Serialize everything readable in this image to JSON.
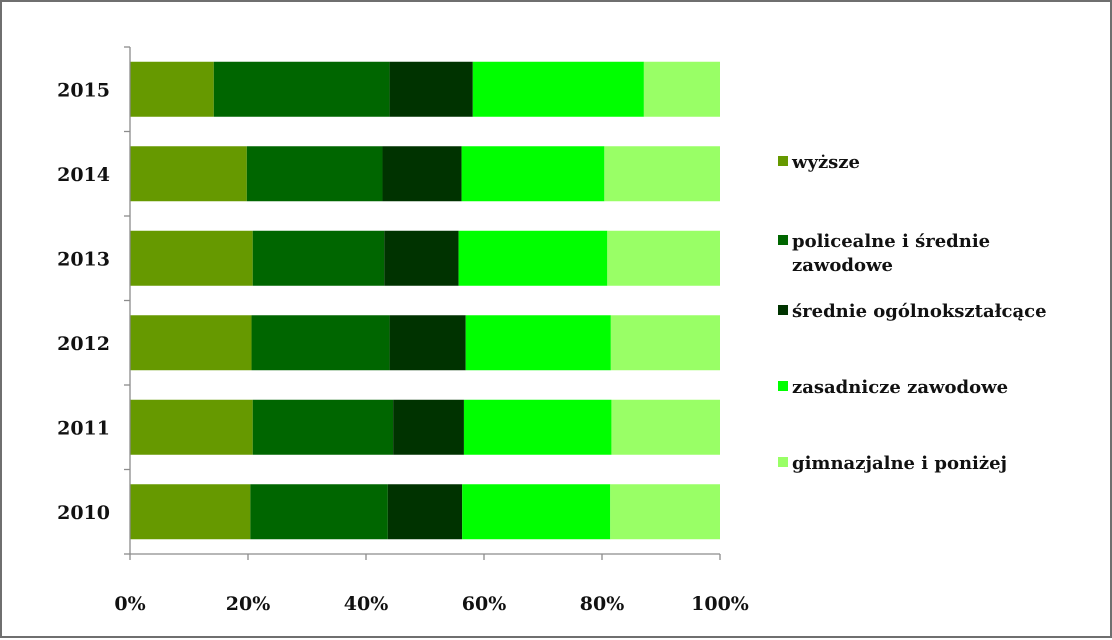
{
  "chart_data": {
    "type": "bar",
    "orientation": "horizontal",
    "stacked": "percent",
    "categories": [
      "2015",
      "2014",
      "2013",
      "2012",
      "2011",
      "2010"
    ],
    "series": [
      {
        "name": "wyższe",
        "color": "#669900",
        "values": [
          14.2,
          19.8,
          20.8,
          20.6,
          20.8,
          20.4
        ]
      },
      {
        "name": [
          "policealne i średnie",
          "zawodowe"
        ],
        "color": "#006600",
        "values": [
          29.8,
          23.0,
          22.3,
          23.4,
          23.8,
          23.3
        ]
      },
      {
        "name": "średnie ogólnokształcące",
        "color": "#003300",
        "values": [
          14.1,
          13.4,
          12.6,
          12.9,
          12.0,
          12.6
        ]
      },
      {
        "name": "zasadnicze zawodowe",
        "color": "#00FF00",
        "values": [
          29.0,
          24.2,
          25.2,
          24.6,
          25.0,
          25.1
        ]
      },
      {
        "name": "gimnazjalne i poniżej",
        "color": "#99FF66",
        "values": [
          12.9,
          19.6,
          19.1,
          18.5,
          18.4,
          18.6
        ]
      }
    ],
    "x_ticks": [
      "0%",
      "20%",
      "40%",
      "60%",
      "80%",
      "100%"
    ],
    "xlim": [
      0,
      100
    ],
    "legend_position": "right",
    "grid": false
  }
}
